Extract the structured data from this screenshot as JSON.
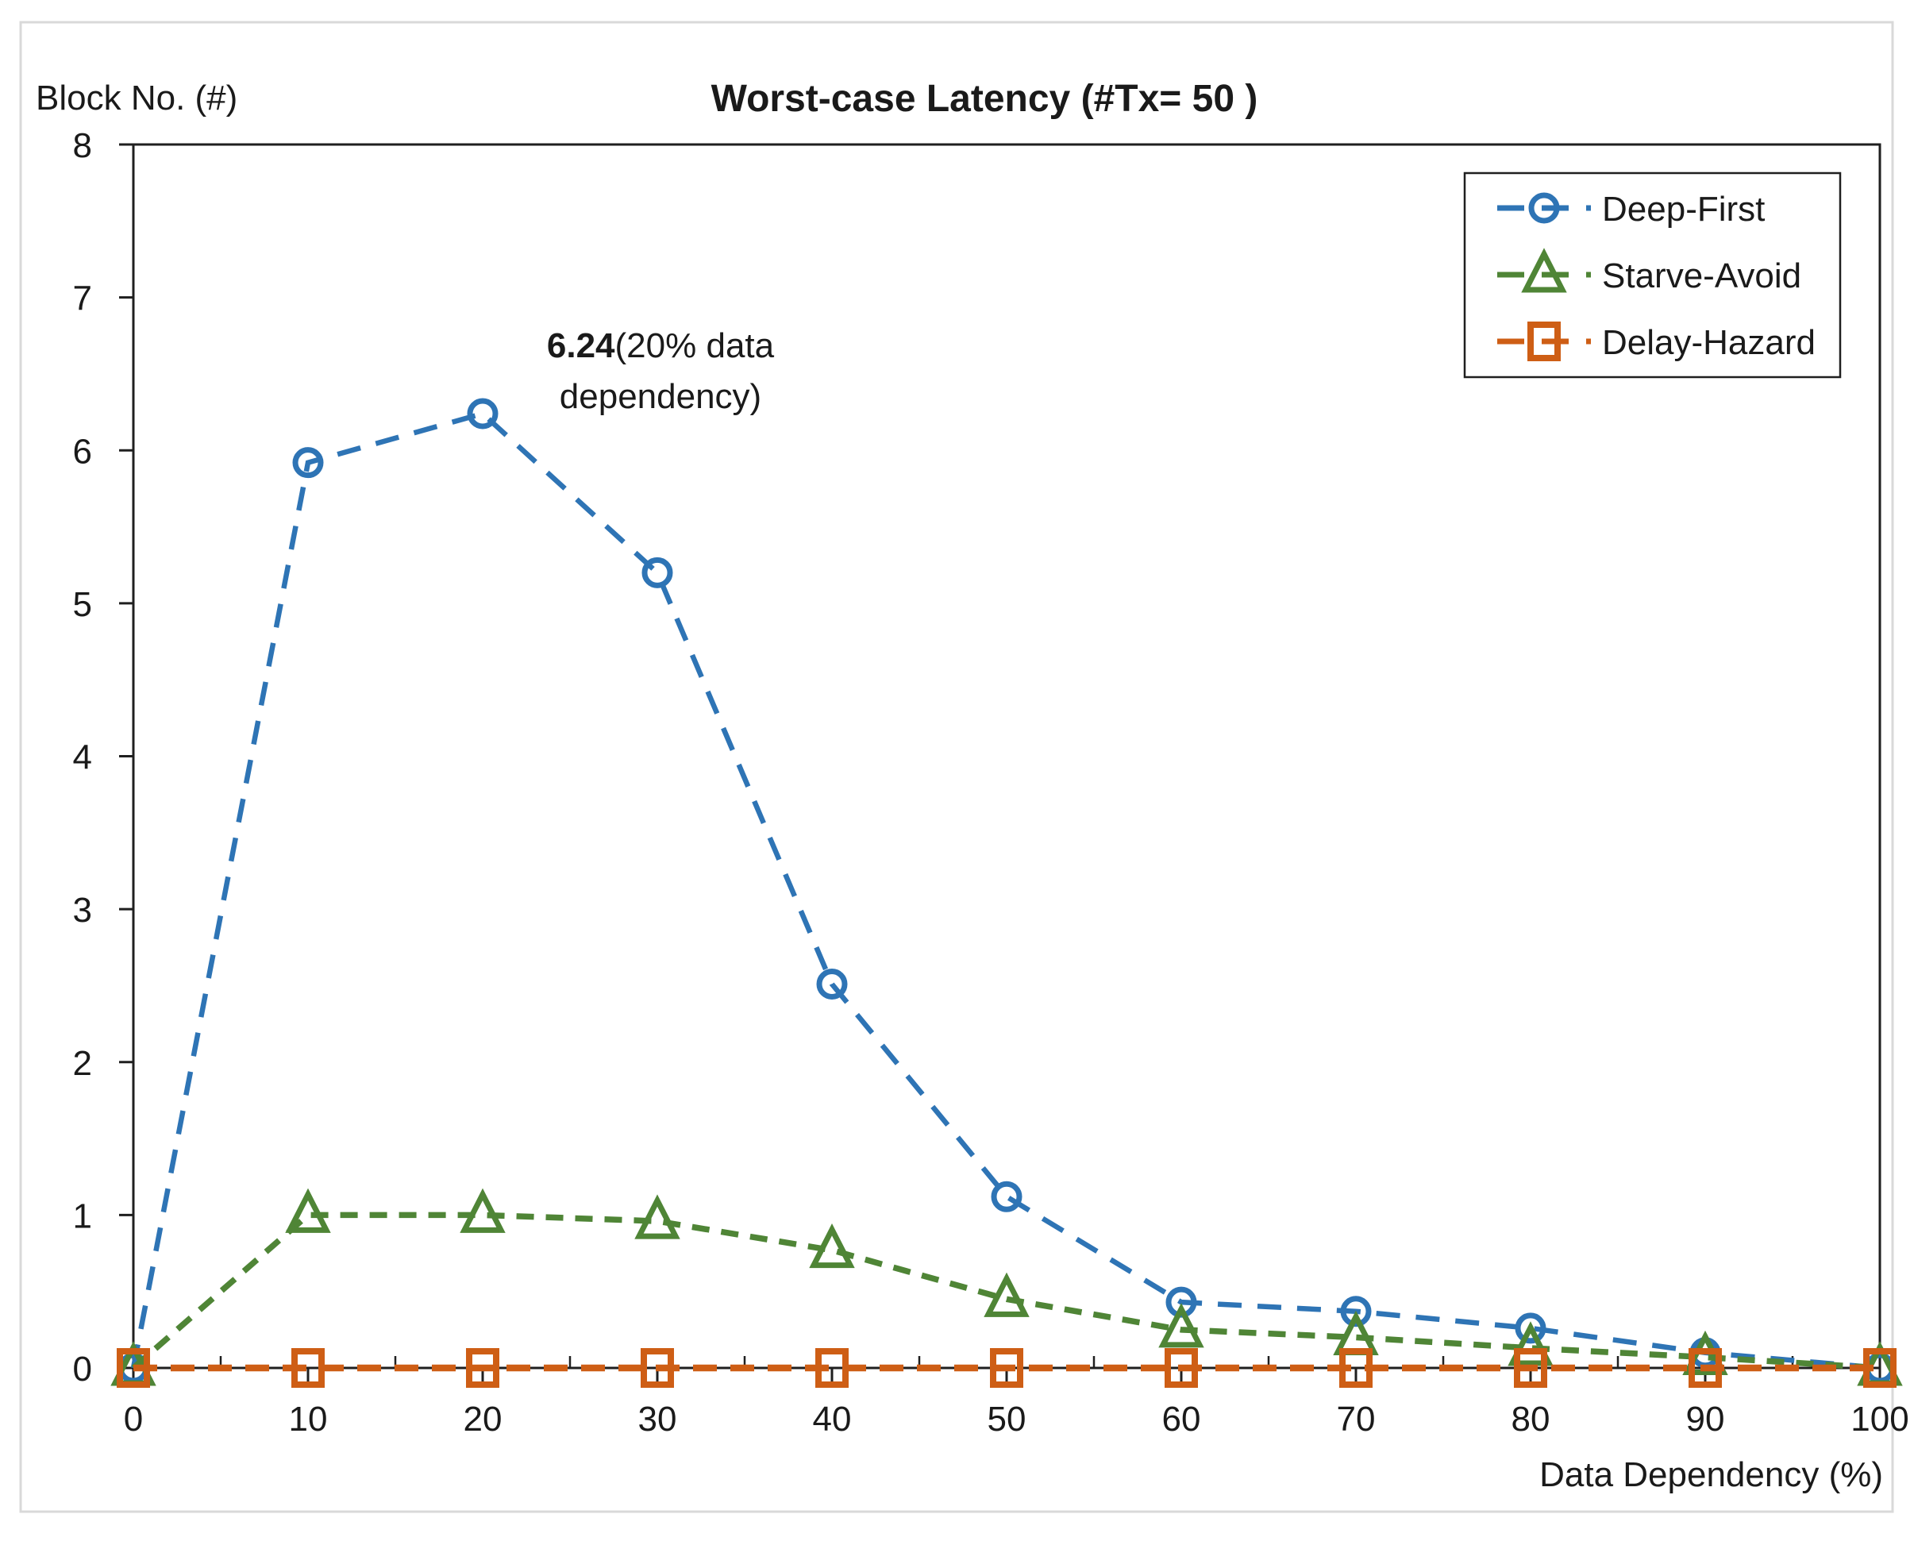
{
  "annotation": {
    "bold": "6.24",
    "line1_rest": "(20% data",
    "line2": "dependency)"
  },
  "colors": {
    "deep_first": "#2E74B5",
    "starve_avoid": "#4F8536",
    "delay_hazard": "#CE5E15",
    "axis": "#1f1f1f",
    "frame": "#D9D9D9",
    "text": "#1a1a1a"
  },
  "chart_data": {
    "type": "line",
    "title": "Worst-case Latency (#Tx= 50 )",
    "xlabel": "Data Dependency (%)",
    "ylabel": "Block No. (#)",
    "x": [
      0,
      10,
      20,
      30,
      40,
      50,
      60,
      70,
      80,
      90,
      100
    ],
    "series": [
      {
        "name": "Deep-First",
        "marker": "circle",
        "color": "#2E74B5",
        "values": [
          0,
          5.92,
          6.24,
          5.2,
          2.51,
          1.12,
          0.43,
          0.37,
          0.26,
          0.1,
          0
        ]
      },
      {
        "name": "Starve-Avoid",
        "marker": "triangle",
        "color": "#4F8536",
        "values": [
          0,
          1.0,
          1.0,
          0.96,
          0.77,
          0.45,
          0.25,
          0.2,
          0.13,
          0.07,
          0
        ]
      },
      {
        "name": "Delay-Hazard",
        "marker": "square",
        "color": "#CE5E15",
        "values": [
          0,
          0,
          0,
          0,
          0,
          0,
          0,
          0,
          0,
          0,
          0
        ]
      }
    ],
    "xlim": [
      0,
      100
    ],
    "ylim": [
      0,
      8
    ],
    "x_ticks": [
      0,
      10,
      20,
      30,
      40,
      50,
      60,
      70,
      80,
      90,
      100
    ],
    "x_minor_step": 5,
    "y_ticks": [
      0,
      1,
      2,
      3,
      4,
      5,
      6,
      7,
      8
    ],
    "grid": false,
    "legend_position": "top-right",
    "annotated_point": {
      "series": "Deep-First",
      "x": 20,
      "y": 6.24
    }
  }
}
